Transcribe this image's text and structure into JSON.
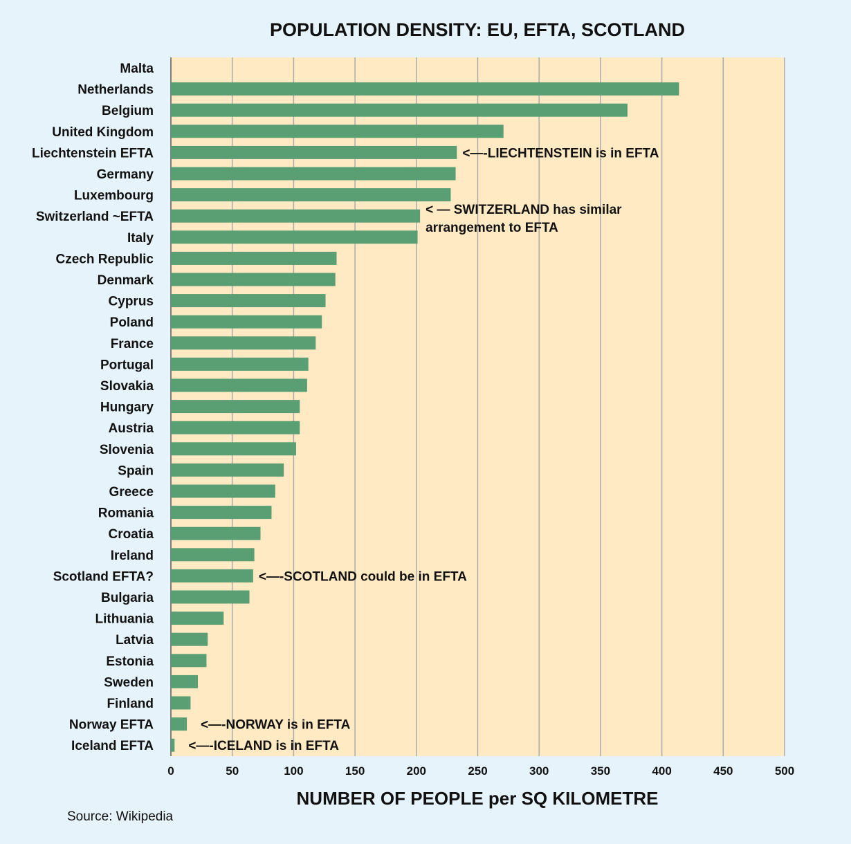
{
  "chart_data": {
    "type": "bar",
    "orientation": "horizontal",
    "title": "POPULATION DENSITY: EU, EFTA, SCOTLAND",
    "xlabel": "NUMBER OF PEOPLE per  SQ KILOMETRE",
    "ylabel": "",
    "xlim": [
      0,
      500
    ],
    "xticks": [
      0,
      50,
      100,
      150,
      200,
      250,
      300,
      350,
      400,
      450,
      500
    ],
    "grid": "vertical",
    "categories": [
      "Malta",
      "Netherlands",
      "Belgium",
      "United Kingdom",
      "Liechtenstein EFTA",
      "Germany",
      "Luxembourg",
      "Switzerland ~EFTA",
      "Italy",
      "Czech Republic",
      "Denmark",
      "Cyprus",
      "Poland",
      "France",
      "Portugal",
      "Slovakia",
      "Hungary",
      "Austria",
      "Slovenia",
      "Spain",
      "Greece",
      "Romania",
      "Croatia",
      "Ireland",
      "Scotland EFTA?",
      "Bulgaria",
      "Lithuania",
      "Latvia",
      "Estonia",
      "Sweden",
      "Finland",
      "Norway EFTA",
      "Iceland EFTA"
    ],
    "values": [
      0,
      414,
      372,
      271,
      233,
      232,
      228,
      203,
      201,
      135,
      134,
      126,
      123,
      118,
      112,
      111,
      105,
      105,
      102,
      92,
      85,
      82,
      73,
      68,
      67,
      64,
      43,
      30,
      29,
      22,
      16,
      13,
      3
    ],
    "annotations": [
      {
        "category": "Liechtenstein EFTA",
        "lines": [
          "<—-LIECHTENSTEIN is in EFTA"
        ]
      },
      {
        "category": "Switzerland ~EFTA",
        "lines": [
          "< — SWITZERLAND has similar",
          "arrangement  to EFTA"
        ]
      },
      {
        "category": "Scotland EFTA?",
        "lines": [
          "<—-SCOTLAND could be in EFTA"
        ]
      },
      {
        "category": "Norway EFTA",
        "lines": [
          "<—-NORWAY is in EFTA"
        ]
      },
      {
        "category": "Iceland EFTA",
        "lines": [
          "<—-ICELAND is in EFTA"
        ]
      }
    ],
    "source": "Source: Wikipedia",
    "colors": {
      "bar": "#5a9f74",
      "plot_background": "#ffeac4",
      "page_background": "#e6f3fb",
      "gridline": "#aaaaaa"
    }
  }
}
